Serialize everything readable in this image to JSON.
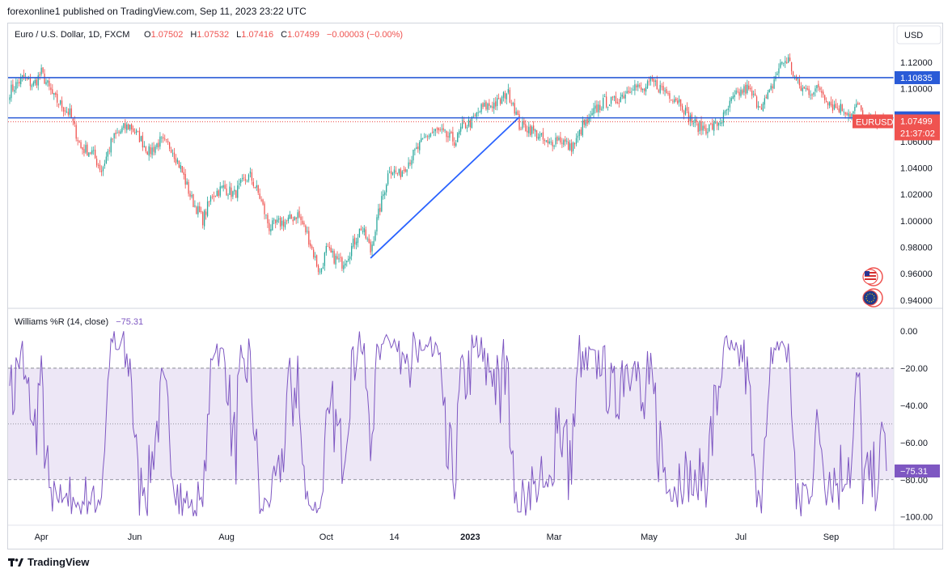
{
  "publisher": "forexonline1 published on TradingView.com, Sep 11, 2023 23:22 UTC",
  "header": {
    "symbol": "Euro / U.S. Dollar, 1D, FXCM",
    "o_label": "O",
    "o_value": "1.07502",
    "h_label": "H",
    "h_value": "1.07532",
    "l_label": "L",
    "l_value": "1.07416",
    "c_label": "C",
    "c_value": "1.07499",
    "change": "−0.00003 (−0.00%)"
  },
  "currency": "USD",
  "footer": {
    "brand": "TradingView"
  },
  "colors": {
    "up": "#26a69a",
    "down": "#ef5350",
    "level": "#2a5bd7",
    "trend": "#2962ff",
    "wr": "#7e57c2",
    "wr_band": "#ede7f6",
    "price_tag": "#ef5350",
    "wr_tag": "#7e57c2",
    "axis_text": "#131722"
  },
  "chart_data": [
    {
      "type": "candlestick",
      "instrument": "EURUSD",
      "y_ticks": [
        "1.12000",
        "1.10000",
        "1.08000",
        "1.06000",
        "1.04000",
        "1.02000",
        "1.00000",
        "0.98000",
        "0.96000",
        "0.94000"
      ],
      "ylim": [
        0.935,
        1.131
      ],
      "x_ticks": [
        "Apr",
        "Jun",
        "Aug",
        "Oct",
        "14",
        "2023",
        "Mar",
        "May",
        "Jul",
        "Sep"
      ],
      "price_anchors": [
        [
          0,
          1.098
        ],
        [
          8,
          1.108
        ],
        [
          15,
          1.103
        ],
        [
          20,
          1.112
        ],
        [
          28,
          1.093
        ],
        [
          38,
          1.081
        ],
        [
          45,
          1.055
        ],
        [
          52,
          1.052
        ],
        [
          58,
          1.038
        ],
        [
          65,
          1.062
        ],
        [
          72,
          1.07
        ],
        [
          76,
          1.072
        ],
        [
          82,
          1.063
        ],
        [
          88,
          1.052
        ],
        [
          95,
          1.06
        ],
        [
          102,
          1.056
        ],
        [
          108,
          1.04
        ],
        [
          115,
          1.016
        ],
        [
          122,
          1.001
        ],
        [
          128,
          1.02
        ],
        [
          135,
          1.025
        ],
        [
          142,
          1.02
        ],
        [
          148,
          1.03
        ],
        [
          152,
          1.034
        ],
        [
          158,
          1.018
        ],
        [
          164,
          0.995
        ],
        [
          170,
          0.998
        ],
        [
          176,
          1.0
        ],
        [
          182,
          1.005
        ],
        [
          188,
          0.99
        ],
        [
          192,
          0.975
        ],
        [
          196,
          0.96
        ],
        [
          200,
          0.978
        ],
        [
          205,
          0.972
        ],
        [
          210,
          0.968
        ],
        [
          214,
          0.975
        ],
        [
          218,
          0.985
        ],
        [
          222,
          0.995
        ],
        [
          226,
          0.985
        ],
        [
          228,
          0.977
        ],
        [
          232,
          1.0
        ],
        [
          236,
          1.02
        ],
        [
          240,
          1.04
        ],
        [
          246,
          1.035
        ],
        [
          252,
          1.045
        ],
        [
          258,
          1.055
        ],
        [
          264,
          1.065
        ],
        [
          270,
          1.068
        ],
        [
          276,
          1.064
        ],
        [
          282,
          1.06
        ],
        [
          286,
          1.072
        ],
        [
          292,
          1.075
        ],
        [
          298,
          1.085
        ],
        [
          304,
          1.088
        ],
        [
          310,
          1.09
        ],
        [
          314,
          1.098
        ],
        [
          318,
          1.09
        ],
        [
          322,
          1.072
        ],
        [
          328,
          1.07
        ],
        [
          334,
          1.065
        ],
        [
          340,
          1.057
        ],
        [
          346,
          1.063
        ],
        [
          350,
          1.06
        ],
        [
          354,
          1.055
        ],
        [
          358,
          1.06
        ],
        [
          362,
          1.072
        ],
        [
          366,
          1.075
        ],
        [
          370,
          1.084
        ],
        [
          376,
          1.09
        ],
        [
          382,
          1.09
        ],
        [
          388,
          1.096
        ],
        [
          394,
          1.103
        ],
        [
          400,
          1.098
        ],
        [
          406,
          1.105
        ],
        [
          412,
          1.1
        ],
        [
          418,
          1.095
        ],
        [
          424,
          1.09
        ],
        [
          428,
          1.08
        ],
        [
          434,
          1.072
        ],
        [
          440,
          1.07
        ],
        [
          446,
          1.072
        ],
        [
          452,
          1.08
        ],
        [
          456,
          1.09
        ],
        [
          460,
          1.096
        ],
        [
          466,
          1.1
        ],
        [
          472,
          1.09
        ],
        [
          476,
          1.088
        ],
        [
          480,
          1.096
        ],
        [
          484,
          1.11
        ],
        [
          488,
          1.12
        ],
        [
          492,
          1.122
        ],
        [
          496,
          1.108
        ],
        [
          500,
          1.1
        ],
        [
          506,
          1.098
        ],
        [
          512,
          1.1
        ],
        [
          516,
          1.093
        ],
        [
          520,
          1.087
        ],
        [
          524,
          1.086
        ],
        [
          528,
          1.084
        ],
        [
          532,
          1.08
        ],
        [
          536,
          1.088
        ],
        [
          540,
          1.076
        ],
        [
          544,
          1.075
        ]
      ],
      "levels": [
        {
          "value": 1.10835,
          "label": "1.10835"
        },
        {
          "value": 1.07794,
          "label": "1.07794"
        }
      ],
      "trendline": {
        "from": [
          228,
          0.9718
        ],
        "to": [
          322,
          1.0785
        ]
      },
      "last": {
        "value": 1.07499,
        "label": "1.07499",
        "symbol": "EURUSD",
        "countdown": "21:37:02"
      }
    },
    {
      "type": "line",
      "title": "Williams %R (14, close)",
      "value_label": "−75.31",
      "y_ticks": [
        "0.00",
        "−20.00",
        "−40.00",
        "−60.00",
        "−80.00",
        "−100.00"
      ],
      "ylim": [
        -101,
        0
      ],
      "band": [
        -80,
        -20
      ],
      "dashed_levels": [
        -20,
        -50,
        -80
      ],
      "last": {
        "value": -75.31,
        "label": "−75.31"
      }
    }
  ]
}
